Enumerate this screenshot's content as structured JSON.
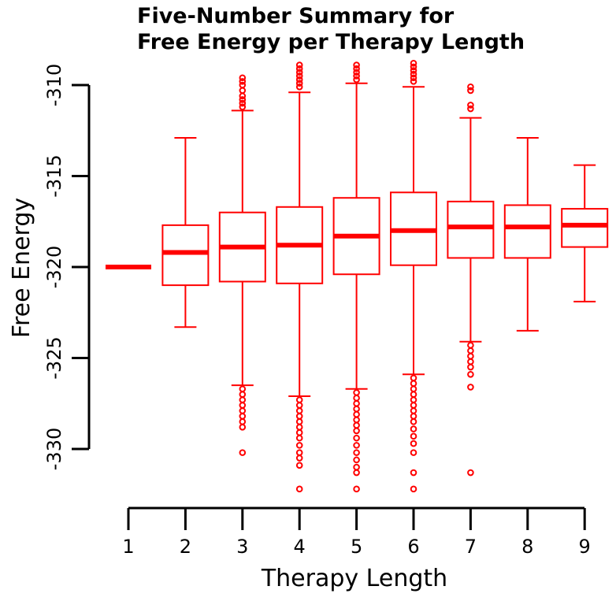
{
  "chart_data": {
    "type": "boxplot",
    "title_lines": [
      "Five-Number Summary for",
      "Free Energy per Therapy Length"
    ],
    "xlabel": "Therapy Length",
    "ylabel": "Free Energy",
    "xlim": [
      1,
      9
    ],
    "ylim": [
      -330,
      -310
    ],
    "x_ticks": [
      "1",
      "2",
      "3",
      "4",
      "5",
      "6",
      "7",
      "8",
      "9"
    ],
    "y_ticks": [
      "-310",
      "-315",
      "-320",
      "-325",
      "-330"
    ],
    "color": "#ff0000",
    "boxes": [
      {
        "x": 1,
        "whisker_low": -320.0,
        "q1": -320.0,
        "median": -320.0,
        "q3": -320.0,
        "whisker_high": -320.0,
        "outliers": []
      },
      {
        "x": 2,
        "whisker_low": -323.3,
        "q1": -321.0,
        "median": -319.2,
        "q3": -317.7,
        "whisker_high": -312.9,
        "outliers": []
      },
      {
        "x": 3,
        "whisker_low": -326.5,
        "q1": -320.8,
        "median": -318.9,
        "q3": -317.0,
        "whisker_high": -311.4,
        "outliers": [
          -309.6,
          -309.8,
          -310.0,
          -310.3,
          -310.6,
          -310.8,
          -311.0,
          -311.2,
          -326.7,
          -327.0,
          -327.3,
          -327.6,
          -327.9,
          -328.2,
          -328.5,
          -328.8,
          -330.2
        ]
      },
      {
        "x": 4,
        "whisker_low": -327.1,
        "q1": -320.9,
        "median": -318.8,
        "q3": -316.7,
        "whisker_high": -310.4,
        "outliers": [
          -308.9,
          -309.1,
          -309.3,
          -309.5,
          -309.7,
          -309.9,
          -310.1,
          -327.3,
          -327.6,
          -327.9,
          -328.2,
          -328.5,
          -328.8,
          -329.1,
          -329.4,
          -329.8,
          -330.2,
          -330.5,
          -330.9,
          -332.2
        ]
      },
      {
        "x": 5,
        "whisker_low": -326.7,
        "q1": -320.4,
        "median": -318.3,
        "q3": -316.2,
        "whisker_high": -309.9,
        "outliers": [
          -308.9,
          -309.1,
          -309.3,
          -309.5,
          -309.7,
          -326.9,
          -327.2,
          -327.5,
          -327.8,
          -328.1,
          -328.4,
          -328.7,
          -329.0,
          -329.4,
          -329.8,
          -330.2,
          -330.6,
          -331.0,
          -331.3,
          -332.2
        ]
      },
      {
        "x": 6,
        "whisker_low": -325.9,
        "q1": -319.9,
        "median": -318.0,
        "q3": -315.9,
        "whisker_high": -310.1,
        "outliers": [
          -308.8,
          -309.0,
          -309.2,
          -309.4,
          -309.6,
          -309.8,
          -326.1,
          -326.4,
          -326.7,
          -327.0,
          -327.3,
          -327.6,
          -327.9,
          -328.2,
          -328.5,
          -328.9,
          -329.3,
          -329.7,
          -330.2,
          -331.3,
          -332.2
        ]
      },
      {
        "x": 7,
        "whisker_low": -324.1,
        "q1": -319.5,
        "median": -317.8,
        "q3": -316.4,
        "whisker_high": -311.8,
        "outliers": [
          -310.1,
          -310.3,
          -311.1,
          -311.3,
          -324.3,
          -324.6,
          -324.9,
          -325.2,
          -325.5,
          -325.9,
          -326.6,
          -331.3
        ]
      },
      {
        "x": 8,
        "whisker_low": -323.5,
        "q1": -319.5,
        "median": -317.8,
        "q3": -316.6,
        "whisker_high": -312.9,
        "outliers": []
      },
      {
        "x": 9,
        "whisker_low": -321.9,
        "q1": -318.9,
        "median": -317.7,
        "q3": -316.8,
        "whisker_high": -314.4,
        "outliers": []
      }
    ]
  }
}
